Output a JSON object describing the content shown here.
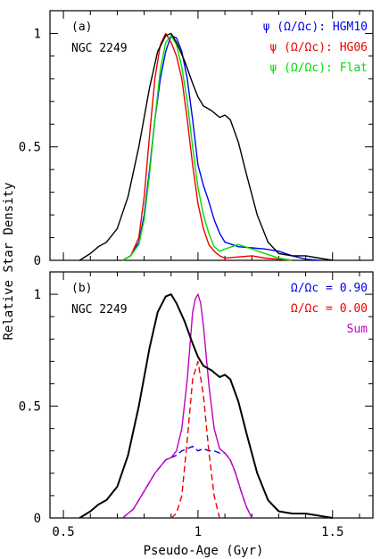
{
  "ylabel": "Relative Star Density",
  "xlabel": "Pseudo-Age (Gyr)",
  "chart_data": [
    {
      "type": "line",
      "panel_label": "(a)",
      "cluster": "NGC 2249",
      "xlim": [
        0.45,
        1.65
      ],
      "ylim": [
        0,
        1.1
      ],
      "xticks": [
        "0.5",
        "1",
        "1.5"
      ],
      "yticks": [
        "0",
        "0.5",
        "1"
      ],
      "grid": false,
      "legend_position": "top-right",
      "series": [
        {
          "name": "ψ (Ω/Ωc): HGM10",
          "color": "#0000ee",
          "x": [
            0.72,
            0.75,
            0.78,
            0.8,
            0.82,
            0.84,
            0.86,
            0.88,
            0.9,
            0.92,
            0.94,
            0.96,
            0.98,
            1.0,
            1.02,
            1.04,
            1.06,
            1.08,
            1.1,
            1.15,
            1.2,
            1.25,
            1.3,
            1.35,
            1.4,
            1.45
          ],
          "y": [
            0.0,
            0.02,
            0.08,
            0.2,
            0.4,
            0.62,
            0.8,
            0.92,
            0.99,
            0.98,
            0.92,
            0.8,
            0.62,
            0.42,
            0.33,
            0.26,
            0.18,
            0.12,
            0.08,
            0.06,
            0.055,
            0.05,
            0.04,
            0.02,
            0.005,
            0.0
          ]
        },
        {
          "name": "ψ (Ω/Ωc): HG06",
          "color": "#ee0000",
          "x": [
            0.72,
            0.75,
            0.78,
            0.8,
            0.82,
            0.84,
            0.86,
            0.88,
            0.9,
            0.92,
            0.94,
            0.96,
            0.98,
            1.0,
            1.02,
            1.04,
            1.06,
            1.08,
            1.1,
            1.15,
            1.2,
            1.25,
            1.3,
            1.35
          ],
          "y": [
            0.0,
            0.02,
            0.1,
            0.28,
            0.55,
            0.8,
            0.95,
            1.0,
            0.96,
            0.9,
            0.8,
            0.62,
            0.42,
            0.25,
            0.14,
            0.07,
            0.04,
            0.02,
            0.01,
            0.015,
            0.02,
            0.01,
            0.005,
            0.0
          ]
        },
        {
          "name": "ψ (Ω/Ωc): Flat",
          "color": "#00dd00",
          "x": [
            0.72,
            0.75,
            0.78,
            0.8,
            0.82,
            0.84,
            0.86,
            0.88,
            0.9,
            0.92,
            0.94,
            0.96,
            0.98,
            1.0,
            1.02,
            1.04,
            1.06,
            1.08,
            1.1,
            1.15,
            1.2,
            1.25,
            1.3,
            1.35
          ],
          "y": [
            0.0,
            0.02,
            0.07,
            0.18,
            0.38,
            0.62,
            0.84,
            0.96,
            0.99,
            0.95,
            0.85,
            0.7,
            0.5,
            0.32,
            0.2,
            0.12,
            0.06,
            0.04,
            0.05,
            0.07,
            0.05,
            0.03,
            0.01,
            0.0
          ]
        },
        {
          "name": "",
          "color": "#000000",
          "x": [
            0.56,
            0.6,
            0.63,
            0.66,
            0.7,
            0.74,
            0.78,
            0.82,
            0.85,
            0.88,
            0.9,
            0.92,
            0.95,
            0.98,
            1.0,
            1.02,
            1.05,
            1.08,
            1.1,
            1.12,
            1.15,
            1.18,
            1.22,
            1.26,
            1.3,
            1.35,
            1.4,
            1.45,
            1.5
          ],
          "y": [
            0.0,
            0.03,
            0.06,
            0.08,
            0.14,
            0.28,
            0.5,
            0.76,
            0.92,
            0.99,
            1.0,
            0.96,
            0.88,
            0.78,
            0.72,
            0.68,
            0.66,
            0.63,
            0.64,
            0.62,
            0.52,
            0.38,
            0.2,
            0.08,
            0.03,
            0.02,
            0.02,
            0.01,
            0.0
          ]
        }
      ]
    },
    {
      "type": "line",
      "panel_label": "(b)",
      "cluster": "NGC 2249",
      "xlim": [
        0.45,
        1.65
      ],
      "ylim": [
        0,
        1.1
      ],
      "xticks": [
        "0.5",
        "1",
        "1.5"
      ],
      "yticks": [
        "0",
        "0.5",
        "1"
      ],
      "grid": false,
      "legend_position": "top-right",
      "series": [
        {
          "name": "Ω/Ωc = 0.90",
          "color": "#0000ee",
          "dash": true,
          "x": [
            0.72,
            0.76,
            0.8,
            0.84,
            0.88,
            0.92,
            0.94,
            0.96,
            0.98,
            1.0,
            1.02,
            1.04,
            1.06,
            1.08,
            1.1,
            1.12,
            1.14,
            1.16,
            1.18,
            1.2
          ],
          "y": [
            0.0,
            0.04,
            0.12,
            0.2,
            0.26,
            0.28,
            0.3,
            0.31,
            0.32,
            0.3,
            0.31,
            0.3,
            0.3,
            0.29,
            0.29,
            0.26,
            0.2,
            0.12,
            0.05,
            0.0
          ]
        },
        {
          "name": "Ω/Ωc = 0.00",
          "color": "#ee0000",
          "dash": true,
          "x": [
            0.9,
            0.92,
            0.94,
            0.96,
            0.98,
            1.0,
            1.02,
            1.04,
            1.06,
            1.08
          ],
          "y": [
            0.0,
            0.02,
            0.1,
            0.35,
            0.62,
            0.7,
            0.55,
            0.3,
            0.1,
            0.0
          ]
        },
        {
          "name": "Sum",
          "color": "#c000c0",
          "x": [
            0.72,
            0.76,
            0.8,
            0.84,
            0.88,
            0.9,
            0.92,
            0.94,
            0.96,
            0.98,
            0.99,
            1.0,
            1.01,
            1.02,
            1.04,
            1.06,
            1.08,
            1.1,
            1.12,
            1.14,
            1.16,
            1.18,
            1.2
          ],
          "y": [
            0.0,
            0.04,
            0.12,
            0.2,
            0.26,
            0.27,
            0.3,
            0.4,
            0.62,
            0.92,
            0.98,
            1.0,
            0.96,
            0.86,
            0.6,
            0.4,
            0.31,
            0.29,
            0.26,
            0.2,
            0.12,
            0.05,
            0.0
          ]
        },
        {
          "name": "",
          "color": "#000000",
          "x": [
            0.56,
            0.6,
            0.63,
            0.66,
            0.7,
            0.74,
            0.78,
            0.82,
            0.85,
            0.88,
            0.9,
            0.92,
            0.95,
            0.98,
            1.0,
            1.02,
            1.05,
            1.08,
            1.1,
            1.12,
            1.15,
            1.18,
            1.22,
            1.26,
            1.3,
            1.35,
            1.4,
            1.45,
            1.5
          ],
          "y": [
            0.0,
            0.03,
            0.06,
            0.08,
            0.14,
            0.28,
            0.5,
            0.76,
            0.92,
            0.99,
            1.0,
            0.96,
            0.88,
            0.78,
            0.72,
            0.68,
            0.66,
            0.63,
            0.64,
            0.62,
            0.52,
            0.38,
            0.2,
            0.08,
            0.03,
            0.02,
            0.02,
            0.01,
            0.0
          ]
        }
      ]
    }
  ]
}
